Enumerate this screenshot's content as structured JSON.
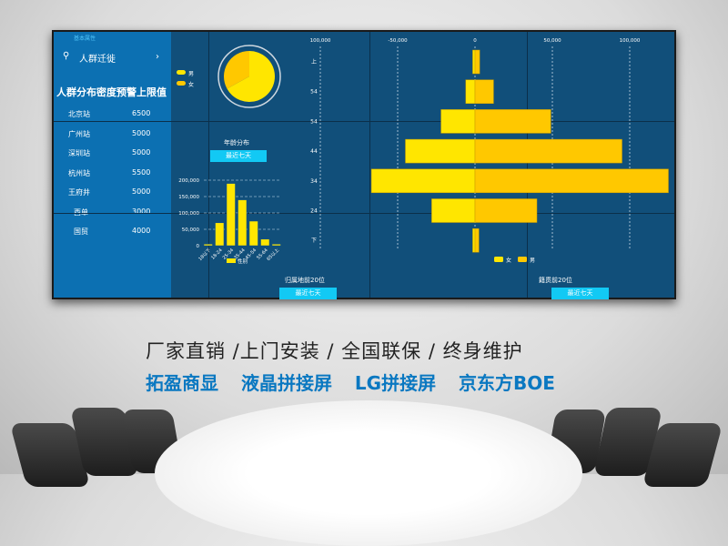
{
  "left_panel": {
    "section_label": "基本属性",
    "nav_item": "人群迁徙",
    "nav_arrow": "›",
    "title": "人群分布密度预警上限值",
    "stations": [
      {
        "name": "北京站",
        "value": "6500"
      },
      {
        "name": "广州站",
        "value": "5000"
      },
      {
        "name": "深圳站",
        "value": "5000"
      },
      {
        "name": "杭州站",
        "value": "5500"
      },
      {
        "name": "王府井",
        "value": "5000"
      },
      {
        "name": "西单",
        "value": "3000"
      },
      {
        "name": "国贸",
        "value": "4000"
      }
    ]
  },
  "colors": {
    "panel": "#0c70b2",
    "screen": "#114f7a",
    "female": "#ffe600",
    "male": "#ffc800",
    "button": "#12c9f4",
    "brand_blue": "#0a78c1"
  },
  "gender_pie": {
    "legend": [
      "男",
      "女"
    ]
  },
  "age_section": {
    "title": "年龄分布",
    "button": "最近七天"
  },
  "origin_section": {
    "title": "归属地前20位",
    "button": "最近七天"
  },
  "native_section": {
    "title": "籍贯前20位",
    "button": "最近七天"
  },
  "chart_data": [
    {
      "type": "pie",
      "series": [
        {
          "name": "男",
          "value": 67
        },
        {
          "name": "女",
          "value": 33
        }
      ]
    },
    {
      "type": "bar",
      "title": "",
      "categories": [
        "18以下",
        "18-24",
        "25-34",
        "35-44",
        "45-54",
        "55-64",
        "65以上"
      ],
      "values": [
        5000,
        70000,
        190000,
        140000,
        75000,
        20000,
        5000
      ],
      "yticks": [
        "0",
        "50,000",
        "100,000",
        "150,000",
        "200,000"
      ],
      "ylim": [
        0,
        200000
      ],
      "grid": true,
      "legend": "性别"
    },
    {
      "type": "bar",
      "orientation": "horizontal-butterfly",
      "categories": [
        "上",
        "54",
        "54",
        "44",
        "34",
        "24",
        "下"
      ],
      "xticks": [
        "100,000",
        "-50,000",
        "0",
        "50,000",
        "100,000"
      ],
      "xlim": [
        -100000,
        125000
      ],
      "grid": true,
      "legend_placement": "bottom",
      "series": [
        {
          "name": "女",
          "values": [
            -1500,
            -6000,
            -22000,
            -45000,
            -67000,
            -28000,
            -1500
          ]
        },
        {
          "name": "男",
          "values": [
            3000,
            12000,
            49000,
            95000,
            125000,
            40000,
            2500
          ]
        }
      ]
    }
  ],
  "slogan": {
    "line1": "厂家直销 /上门安装 / 全国联保 / 终身维护",
    "line2": "拓盈商显 液晶拼接屏 LG拼接屏 京东方BOE"
  }
}
